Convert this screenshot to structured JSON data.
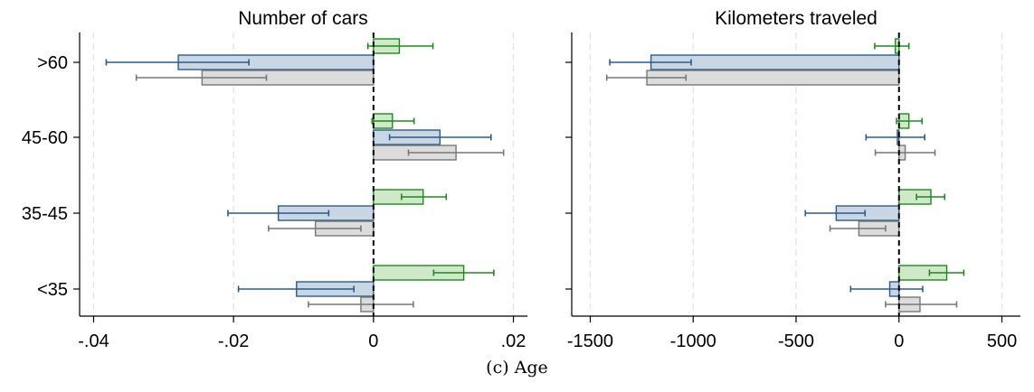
{
  "caption": "(c) Age",
  "colors": {
    "green_fill": "#cfe8c8",
    "green_line": "#1e8a1e",
    "blue_fill": "#c9d6e3",
    "blue_line": "#2b5b8a",
    "gray_fill": "#dcdcdc",
    "gray_line": "#777777",
    "grid": "#e2e2e2",
    "zero_line": "#000000"
  },
  "chart_data": [
    {
      "type": "bar",
      "orientation": "horizontal",
      "title": "Number of cars",
      "categories": [
        ">60",
        "45-60",
        "35-45",
        "<35"
      ],
      "xlim": [
        -0.042,
        0.022
      ],
      "xticks": [
        -0.04,
        -0.02,
        0,
        0.02
      ],
      "xtick_labels": [
        "-.04",
        "-.02",
        "0",
        ".02"
      ],
      "grid": true,
      "zero_line": "dashed",
      "series": [
        {
          "color": "green",
          "values": [
            0.0037,
            0.0027,
            0.0071,
            0.0129
          ],
          "ci_low": [
            -0.0008,
            -0.0002,
            0.004,
            0.0086
          ],
          "ci_high": [
            0.0085,
            0.0058,
            0.0104,
            0.0172
          ]
        },
        {
          "color": "blue",
          "values": [
            -0.0279,
            0.0095,
            -0.0136,
            -0.011
          ],
          "ci_low": [
            -0.0382,
            0.0023,
            -0.0208,
            -0.0193
          ],
          "ci_high": [
            -0.0178,
            0.0168,
            -0.0064,
            -0.0028
          ]
        },
        {
          "color": "gray",
          "values": [
            -0.0245,
            0.0118,
            -0.0083,
            -0.0018
          ],
          "ci_low": [
            -0.0339,
            0.005,
            -0.015,
            -0.0093
          ],
          "ci_high": [
            -0.0153,
            0.0186,
            -0.0018,
            0.0057
          ]
        }
      ]
    },
    {
      "type": "bar",
      "orientation": "horizontal",
      "title": "Kilometers traveled",
      "categories": [
        ">60",
        "45-60",
        "35-45",
        "<35"
      ],
      "xlim": [
        -1590,
        590
      ],
      "xticks": [
        -1500,
        -1000,
        -500,
        0,
        500
      ],
      "xtick_labels": [
        "-1500",
        "-1000",
        "-500",
        "0",
        "500"
      ],
      "grid": true,
      "zero_line": "dashed",
      "series": [
        {
          "color": "green",
          "values": [
            -18,
            48,
            155,
            232
          ],
          "ci_low": [
            -118,
            -12,
            85,
            148
          ],
          "ci_high": [
            48,
            112,
            222,
            315
          ]
        },
        {
          "color": "blue",
          "values": [
            -1205,
            -8,
            -305,
            -45
          ],
          "ci_low": [
            -1405,
            -160,
            -455,
            -235
          ],
          "ci_high": [
            -1010,
            125,
            -165,
            115
          ]
        },
        {
          "color": "gray",
          "values": [
            -1225,
            30,
            -195,
            102
          ],
          "ci_low": [
            -1420,
            -115,
            -335,
            -65
          ],
          "ci_high": [
            -1035,
            175,
            -65,
            280
          ]
        }
      ]
    }
  ]
}
